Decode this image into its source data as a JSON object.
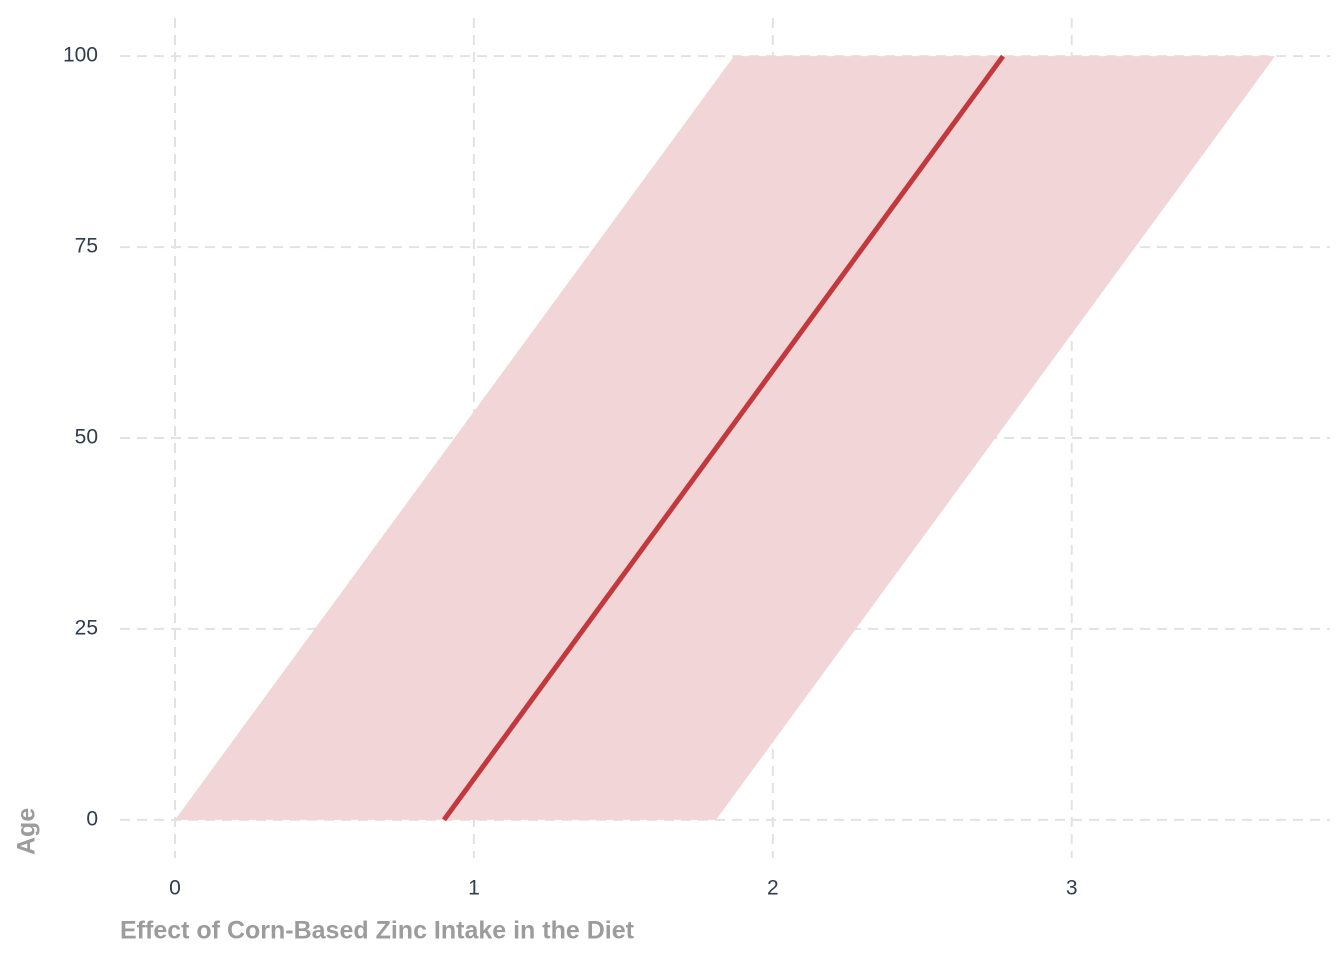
{
  "chart_data": {
    "type": "line",
    "xlabel": "Effect of Corn-Based Zinc Intake in the Diet",
    "ylabel": "Age",
    "series": [
      {
        "color": "#c2393d",
        "x": [
          0.9,
          2.77
        ],
        "y": [
          0,
          100
        ]
      }
    ],
    "band": {
      "color": "#f2d5d6",
      "y": [
        0,
        100
      ],
      "lower": [
        0,
        1.87
      ],
      "upper": [
        1.81,
        3.68
      ]
    },
    "xlim": [
      -0.184,
      3.864
    ],
    "ylim": [
      -5,
      105
    ],
    "xticks": [
      0,
      1,
      2,
      3
    ],
    "yticks": [
      0,
      25,
      50,
      75,
      100
    ],
    "grid": true
  }
}
